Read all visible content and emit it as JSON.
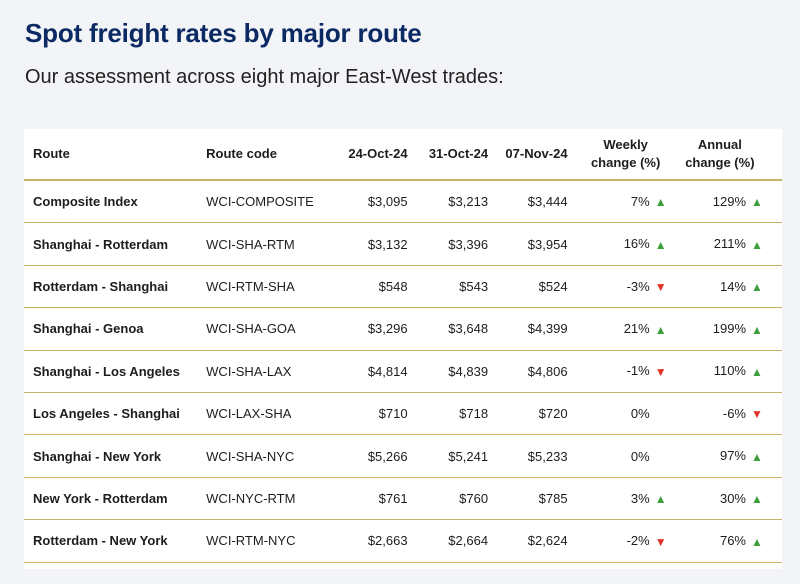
{
  "title": "Spot freight rates by major route",
  "subtitle": "Our assessment across eight major East-West trades:",
  "table": {
    "headers": {
      "route": "Route",
      "code": "Route code",
      "d1": "24-Oct-24",
      "d2": "31-Oct-24",
      "d3": "07-Nov-24",
      "weekly_1": "Weekly",
      "weekly_2": "change (%)",
      "annual_1": "Annual",
      "annual_2": "change (%)"
    },
    "rows": [
      {
        "route": "Composite Index",
        "code": "WCI-COMPOSITE",
        "d1": "$3,095",
        "d2": "$3,213",
        "d3": "$3,444",
        "weekly": "7%",
        "weekly_dir": "up",
        "annual": "129%",
        "annual_dir": "up"
      },
      {
        "route": "Shanghai - Rotterdam",
        "code": "WCI-SHA-RTM",
        "d1": "$3,132",
        "d2": "$3,396",
        "d3": "$3,954",
        "weekly": "16%",
        "weekly_dir": "up",
        "annual": "211%",
        "annual_dir": "up"
      },
      {
        "route": "Rotterdam - Shanghai",
        "code": "WCI-RTM-SHA",
        "d1": "$548",
        "d2": "$543",
        "d3": "$524",
        "weekly": "-3%",
        "weekly_dir": "down",
        "annual": "14%",
        "annual_dir": "up"
      },
      {
        "route": "Shanghai - Genoa",
        "code": "WCI-SHA-GOA",
        "d1": "$3,296",
        "d2": "$3,648",
        "d3": "$4,399",
        "weekly": "21%",
        "weekly_dir": "up",
        "annual": "199%",
        "annual_dir": "up"
      },
      {
        "route": "Shanghai - Los Angeles",
        "code": "WCI-SHA-LAX",
        "d1": "$4,814",
        "d2": "$4,839",
        "d3": "$4,806",
        "weekly": "-1%",
        "weekly_dir": "down",
        "annual": "110%",
        "annual_dir": "up"
      },
      {
        "route": "Los Angeles - Shanghai",
        "code": "WCI-LAX-SHA",
        "d1": "$710",
        "d2": "$718",
        "d3": "$720",
        "weekly": "0%",
        "weekly_dir": "none",
        "annual": "-6%",
        "annual_dir": "down"
      },
      {
        "route": "Shanghai - New York",
        "code": "WCI-SHA-NYC",
        "d1": "$5,266",
        "d2": "$5,241",
        "d3": "$5,233",
        "weekly": "0%",
        "weekly_dir": "none",
        "annual": "97%",
        "annual_dir": "up"
      },
      {
        "route": "New York - Rotterdam",
        "code": "WCI-NYC-RTM",
        "d1": "$761",
        "d2": "$760",
        "d3": "$785",
        "weekly": "3%",
        "weekly_dir": "up",
        "annual": "30%",
        "annual_dir": "up"
      },
      {
        "route": "Rotterdam - New York",
        "code": "WCI-RTM-NYC",
        "d1": "$2,663",
        "d2": "$2,664",
        "d3": "$2,624",
        "weekly": "-2%",
        "weekly_dir": "down",
        "annual": "76%",
        "annual_dir": "up"
      }
    ]
  },
  "colors": {
    "title": "#0b2a63",
    "divider": "#c9b26a",
    "up": "#3f9f3c",
    "down": "#e23326",
    "background": "#f3f4f8"
  },
  "icons": {
    "up": "triangle-up-icon",
    "down": "triangle-down-icon"
  }
}
